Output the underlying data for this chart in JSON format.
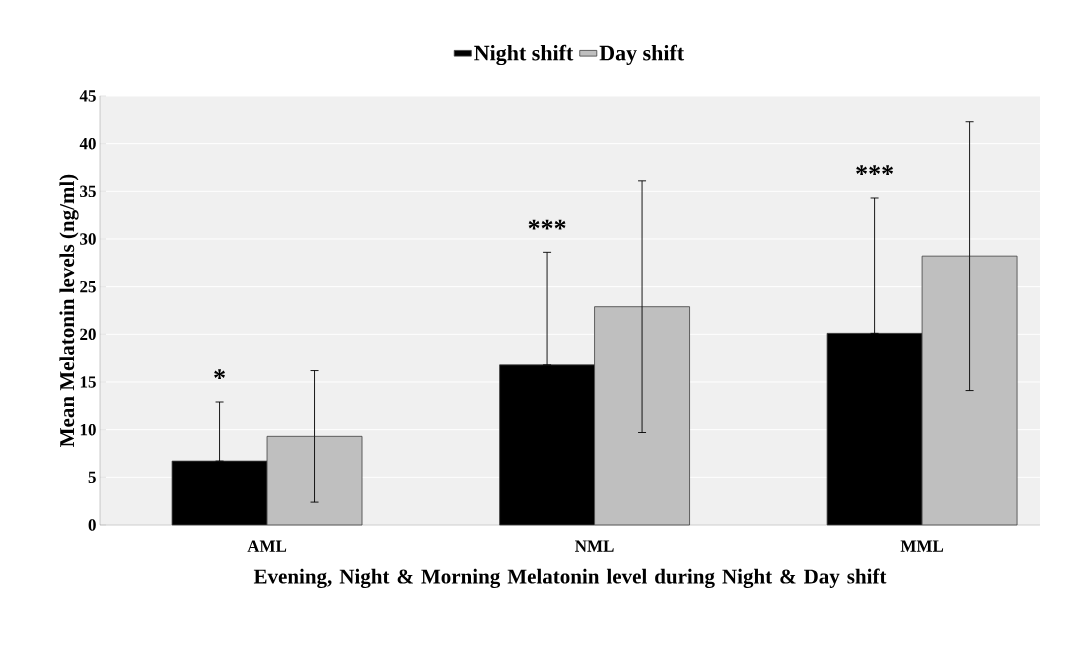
{
  "chart_data": {
    "type": "bar",
    "categories": [
      "AML",
      "NML",
      "MML"
    ],
    "series": [
      {
        "name": "Night shift",
        "color": "#000000",
        "values": [
          6.7,
          16.8,
          20.1
        ],
        "errors": [
          [
            6.7,
            12.9
          ],
          [
            16.8,
            28.6
          ],
          [
            20.1,
            34.3
          ]
        ]
      },
      {
        "name": "Day shift",
        "color": "#bfbfbf",
        "values": [
          9.3,
          22.9,
          28.2
        ],
        "errors": [
          6.9,
          13.2,
          14.1
        ]
      }
    ],
    "xlabel": "Evening, Night & Morning Melatonin  level during Night & Day shift",
    "ylabel": "Mean Melatonin  levels (ng/ml)",
    "ylim": [
      0,
      45
    ],
    "yticks": [
      0,
      5,
      10,
      15,
      20,
      25,
      30,
      35,
      40,
      45
    ],
    "grid": "y",
    "legend": "top",
    "annotations": [
      "*",
      "***",
      "***"
    ]
  }
}
